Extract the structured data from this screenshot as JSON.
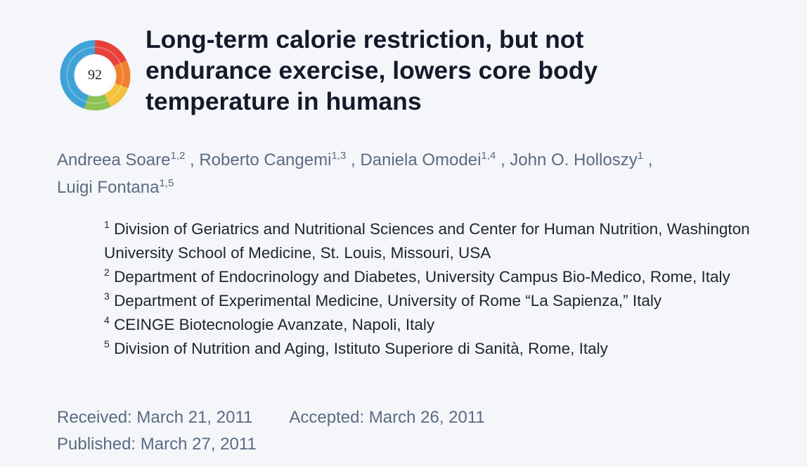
{
  "badge": {
    "score": "92"
  },
  "title": "Long-term calorie restriction, but not endurance exercise, lowers core body temperature in humans",
  "authors": {
    "separator": ",",
    "list": [
      {
        "name": "Andreea Soare",
        "affiliations": "1,2"
      },
      {
        "name": "Roberto Cangemi",
        "affiliations": "1,3"
      },
      {
        "name": "Daniela Omodei",
        "affiliations": "1,4"
      },
      {
        "name": "John O. Holloszy",
        "affiliations": "1"
      },
      {
        "name": "Luigi Fontana",
        "affiliations": "1,5"
      }
    ]
  },
  "affiliations": [
    {
      "number": "1",
      "text": "Division of Geriatrics and Nutritional Sciences and Center for Human Nutrition, Washington University School of Medicine, St. Louis, Missouri, USA"
    },
    {
      "number": "2",
      "text": "Department of Endocrinology and Diabetes, University Campus Bio-Medico, Rome, Italy"
    },
    {
      "number": "3",
      "text": "Department of Experimental Medicine, University of Rome “La Sapienza,” Italy"
    },
    {
      "number": "4",
      "text": "CEINGE Biotecnologie Avanzate, Napoli, Italy"
    },
    {
      "number": "5",
      "text": "Division of Nutrition and Aging, Istituto Superiore di Sanità, Rome, Italy"
    }
  ],
  "dates": {
    "received": "Received: March 21, 2011",
    "accepted": "Accepted: March 26, 2011",
    "published": "Published: March 27, 2011"
  }
}
